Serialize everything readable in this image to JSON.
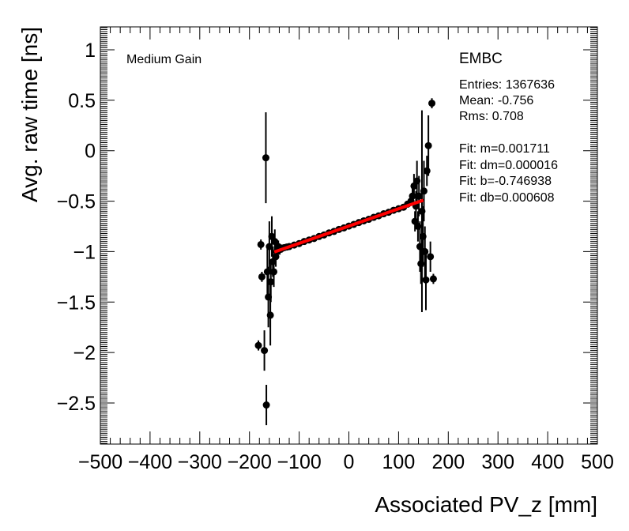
{
  "chart_data": {
    "type": "scatter",
    "title": "",
    "xlabel": "Associated PV_z [mm]",
    "ylabel": "Avg. raw time [ns]",
    "xlim": [
      -500,
      500
    ],
    "ylim": [
      -2.9,
      1.25
    ],
    "x_ticks": [
      -500,
      -400,
      -300,
      -200,
      -100,
      0,
      100,
      200,
      300,
      400,
      500
    ],
    "x_tick_labels": [
      "−500",
      "−400",
      "−300",
      "−200",
      "−100",
      "0",
      "100",
      "200",
      "300",
      "400",
      "500"
    ],
    "y_ticks": [
      1,
      0.5,
      0,
      -0.5,
      -1,
      -1.5,
      -2,
      -2.5
    ],
    "y_tick_labels": [
      "1",
      "0.5",
      "0",
      "−0.5",
      "−1",
      "−1.5",
      "−2",
      "−2.5"
    ],
    "gain_label": "Medium Gain",
    "stats": {
      "name": "EMBC",
      "entries": "Entries: 1367636",
      "mean": "Mean: -0.756",
      "rms": "Rms: 0.708",
      "fit_m": "Fit: m=0.001711",
      "fit_dm": "Fit: dm=0.000016",
      "fit_b": "Fit: b=-0.746938",
      "fit_db": "Fit: db=0.000608"
    },
    "fit_line": {
      "m": 0.001711,
      "b": -0.746938,
      "x_range": [
        -150,
        150
      ],
      "color": "#ff0000"
    },
    "series": [
      {
        "name": "points",
        "color": "#000000",
        "points": [
          {
            "x": -182,
            "y": -1.93,
            "err": 0.05
          },
          {
            "x": -177,
            "y": -0.93,
            "err": 0.05
          },
          {
            "x": -175,
            "y": -1.25,
            "err": 0.05
          },
          {
            "x": -170,
            "y": -1.98,
            "err": 0.2
          },
          {
            "x": -167,
            "y": -0.07,
            "err": 0.45
          },
          {
            "x": -166,
            "y": -2.52,
            "err": 0.2
          },
          {
            "x": -164,
            "y": -1.2,
            "err": 0.25
          },
          {
            "x": -162,
            "y": -1.45,
            "err": 0.3
          },
          {
            "x": -160,
            "y": -0.95,
            "err": 0.25
          },
          {
            "x": -158,
            "y": -1.63,
            "err": 0.3
          },
          {
            "x": -157,
            "y": -1.3,
            "err": 0.2
          },
          {
            "x": -155,
            "y": -0.85,
            "err": 0.2
          },
          {
            "x": -153,
            "y": -1.1,
            "err": 0.15
          },
          {
            "x": -151,
            "y": -1.2,
            "err": 0.15
          },
          {
            "x": -149,
            "y": -0.9,
            "err": 0.12
          },
          {
            "x": -147,
            "y": -1.05,
            "err": 0.1
          },
          {
            "x": -145,
            "y": -1.0,
            "err": 0.08
          },
          {
            "x": -142,
            "y": -0.95,
            "err": 0.06
          },
          {
            "x": -139,
            "y": -0.98,
            "err": 0.05
          },
          {
            "x": -135,
            "y": -0.97,
            "err": 0.04
          },
          {
            "x": -130,
            "y": -0.96,
            "err": 0.03
          },
          {
            "x": -125,
            "y": -0.955,
            "err": 0.03
          },
          {
            "x": -120,
            "y": -0.95,
            "err": 0.02
          },
          {
            "x": -110,
            "y": -0.935,
            "err": 0.02
          },
          {
            "x": -100,
            "y": -0.92,
            "err": 0.015
          },
          {
            "x": -90,
            "y": -0.9,
            "err": 0.015
          },
          {
            "x": -80,
            "y": -0.885,
            "err": 0.01
          },
          {
            "x": -70,
            "y": -0.87,
            "err": 0.01
          },
          {
            "x": -60,
            "y": -0.85,
            "err": 0.01
          },
          {
            "x": -50,
            "y": -0.835,
            "err": 0.01
          },
          {
            "x": -40,
            "y": -0.815,
            "err": 0.01
          },
          {
            "x": -30,
            "y": -0.8,
            "err": 0.01
          },
          {
            "x": -20,
            "y": -0.78,
            "err": 0.01
          },
          {
            "x": -10,
            "y": -0.765,
            "err": 0.01
          },
          {
            "x": 0,
            "y": -0.747,
            "err": 0.01
          },
          {
            "x": 10,
            "y": -0.73,
            "err": 0.01
          },
          {
            "x": 20,
            "y": -0.712,
            "err": 0.01
          },
          {
            "x": 30,
            "y": -0.695,
            "err": 0.01
          },
          {
            "x": 40,
            "y": -0.68,
            "err": 0.01
          },
          {
            "x": 50,
            "y": -0.66,
            "err": 0.01
          },
          {
            "x": 60,
            "y": -0.645,
            "err": 0.01
          },
          {
            "x": 70,
            "y": -0.625,
            "err": 0.015
          },
          {
            "x": 80,
            "y": -0.61,
            "err": 0.015
          },
          {
            "x": 90,
            "y": -0.59,
            "err": 0.02
          },
          {
            "x": 100,
            "y": -0.575,
            "err": 0.02
          },
          {
            "x": 110,
            "y": -0.56,
            "err": 0.02
          },
          {
            "x": 118,
            "y": -0.53,
            "err": 0.03
          },
          {
            "x": 125,
            "y": -0.5,
            "err": 0.04
          },
          {
            "x": 128,
            "y": -0.45,
            "err": 0.08
          },
          {
            "x": 131,
            "y": -0.35,
            "err": 0.12
          },
          {
            "x": 133,
            "y": -0.7,
            "err": 0.1
          },
          {
            "x": 135,
            "y": -0.55,
            "err": 0.15
          },
          {
            "x": 137,
            "y": -0.3,
            "err": 0.2
          },
          {
            "x": 139,
            "y": -0.75,
            "err": 0.15
          },
          {
            "x": 141,
            "y": -0.45,
            "err": 0.2
          },
          {
            "x": 143,
            "y": -0.95,
            "err": 0.25
          },
          {
            "x": 145,
            "y": -1.12,
            "err": 0.2
          },
          {
            "x": 147,
            "y": -0.6,
            "err": 1.0
          },
          {
            "x": 149,
            "y": -0.85,
            "err": 0.3
          },
          {
            "x": 151,
            "y": -0.4,
            "err": 0.3
          },
          {
            "x": 153,
            "y": -1.0,
            "err": 0.25
          },
          {
            "x": 155,
            "y": -1.28,
            "err": 0.3
          },
          {
            "x": 157,
            "y": -0.2,
            "err": 0.15
          },
          {
            "x": 160,
            "y": 0.05,
            "err": 0.3
          },
          {
            "x": 164,
            "y": -1.05,
            "err": 0.15
          },
          {
            "x": 167,
            "y": 0.47,
            "err": 0.05
          },
          {
            "x": 170,
            "y": -1.27,
            "err": 0.05
          }
        ]
      }
    ]
  }
}
